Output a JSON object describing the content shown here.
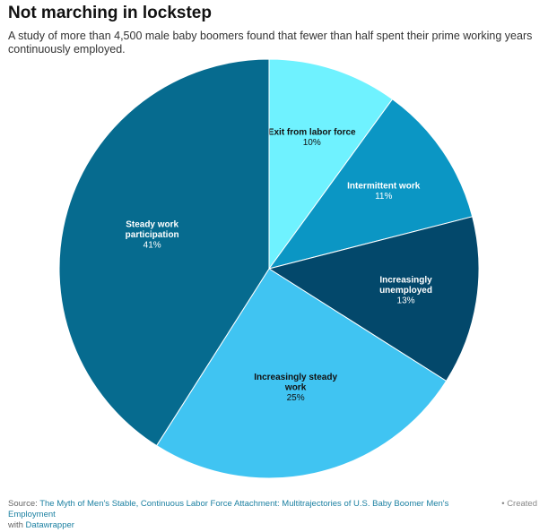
{
  "title": "Not marching in lockstep",
  "subtitle": "A study of more than 4,500 male baby boomers found that fewer than half spent their prime working years continuously employed.",
  "footer": {
    "source_prefix": "Source:",
    "source_link": "The Myth of Men's Stable, Continuous Labor Force Attachment: Multitrajectories of U.S. Baby Boomer Men's Employment",
    "with_text": "with",
    "tool_link": "Datawrapper",
    "created": "• Created"
  },
  "chart_data": {
    "type": "pie",
    "start": "12 o'clock, clockwise",
    "slices": [
      {
        "label_lines": [
          "Exit from labor force"
        ],
        "value": 10,
        "value_text": "10%",
        "color": "#6ff2ff",
        "text_color": "#111111"
      },
      {
        "label_lines": [
          "Intermittent work"
        ],
        "value": 11,
        "value_text": "11%",
        "color": "#0b96c4",
        "text_color": "#ffffff"
      },
      {
        "label_lines": [
          "Increasingly",
          "unemployed"
        ],
        "value": 13,
        "value_text": "13%",
        "color": "#03486b",
        "text_color": "#ffffff"
      },
      {
        "label_lines": [
          "Increasingly steady",
          "work"
        ],
        "value": 25,
        "value_text": "25%",
        "color": "#40c4f2",
        "text_color": "#111111"
      },
      {
        "label_lines": [
          "Steady work",
          "participation"
        ],
        "value": 41,
        "value_text": "41%",
        "color": "#066b8f",
        "text_color": "#ffffff"
      }
    ]
  }
}
